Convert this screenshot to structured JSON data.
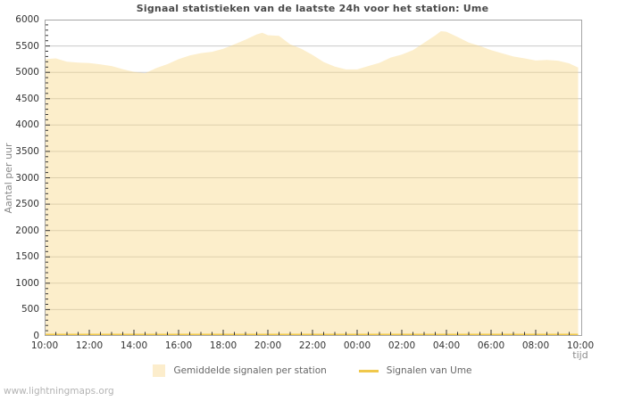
{
  "page": {
    "watermark": "www.lightningmaps.org"
  },
  "chart": {
    "title": "Signaal statistieken van de laatste 24h voor het station: Ume",
    "y_axis_title": "Aantal per uur",
    "x_axis_title": "tijd",
    "legend": [
      {
        "label": "Gemiddelde signalen per station",
        "swatch": "area",
        "color": "#fcedcc"
      },
      {
        "label": "Signalen van Ume",
        "swatch": "line",
        "color": "#f0c84b"
      }
    ]
  },
  "chart_data": {
    "type": "area",
    "title": "Signaal statistieken van de laatste 24h voor het station: Ume",
    "xlabel": "tijd",
    "ylabel": "Aantal per uur",
    "ylim": [
      0,
      6000
    ],
    "y_major_step": 500,
    "y_minor_step": 100,
    "xlim_hours": [
      0,
      24
    ],
    "x_major_step_hours": 2,
    "x_minor_step_hours": 0.5,
    "x_start_label": "10:00",
    "x_tick_labels": [
      "10:00",
      "12:00",
      "14:00",
      "16:00",
      "18:00",
      "20:00",
      "22:00",
      "00:00",
      "02:00",
      "04:00",
      "06:00",
      "08:00",
      "10:00"
    ],
    "grid": "horizontal",
    "legend_position": "bottom",
    "style": {
      "grid": "#c9c9c9",
      "border": "#a6a6a6",
      "tick": "#333333",
      "tick_label": "#333333",
      "title_color": "#4a4a4a",
      "axis_title_color": "#8a8a8a",
      "legend_text_color": "#666666",
      "watermark_color": "#b3b3b3"
    },
    "series": [
      {
        "name": "Gemiddelde signalen per station",
        "type": "area",
        "color": "rgba(248,217,140,0.45)",
        "points_hours_value": [
          [
            0,
            5250
          ],
          [
            0.5,
            5265
          ],
          [
            1,
            5200
          ],
          [
            1.5,
            5185
          ],
          [
            2,
            5175
          ],
          [
            2.5,
            5150
          ],
          [
            3,
            5120
          ],
          [
            3.5,
            5060
          ],
          [
            4,
            5010
          ],
          [
            4.5,
            4985
          ],
          [
            5,
            5080
          ],
          [
            5.5,
            5155
          ],
          [
            6,
            5250
          ],
          [
            6.5,
            5320
          ],
          [
            7,
            5365
          ],
          [
            7.5,
            5390
          ],
          [
            8,
            5445
          ],
          [
            8.5,
            5530
          ],
          [
            9,
            5620
          ],
          [
            9.5,
            5720
          ],
          [
            9.75,
            5750
          ],
          [
            10,
            5705
          ],
          [
            10.5,
            5690
          ],
          [
            11,
            5530
          ],
          [
            11.5,
            5445
          ],
          [
            12,
            5330
          ],
          [
            12.5,
            5195
          ],
          [
            13,
            5110
          ],
          [
            13.5,
            5055
          ],
          [
            14,
            5055
          ],
          [
            14.5,
            5120
          ],
          [
            15,
            5180
          ],
          [
            15.5,
            5280
          ],
          [
            16,
            5335
          ],
          [
            16.5,
            5420
          ],
          [
            17,
            5560
          ],
          [
            17.5,
            5700
          ],
          [
            17.75,
            5780
          ],
          [
            18,
            5770
          ],
          [
            18.5,
            5670
          ],
          [
            19,
            5565
          ],
          [
            19.5,
            5500
          ],
          [
            20,
            5420
          ],
          [
            20.5,
            5360
          ],
          [
            21,
            5300
          ],
          [
            21.5,
            5265
          ],
          [
            22,
            5225
          ],
          [
            22.5,
            5235
          ],
          [
            23,
            5220
          ],
          [
            23.5,
            5170
          ],
          [
            23.9,
            5090
          ]
        ]
      },
      {
        "name": "Signalen van Ume",
        "type": "line",
        "color": "#f0c84b",
        "points_hours_value": [
          [
            0,
            25
          ],
          [
            23.9,
            25
          ]
        ]
      }
    ]
  }
}
